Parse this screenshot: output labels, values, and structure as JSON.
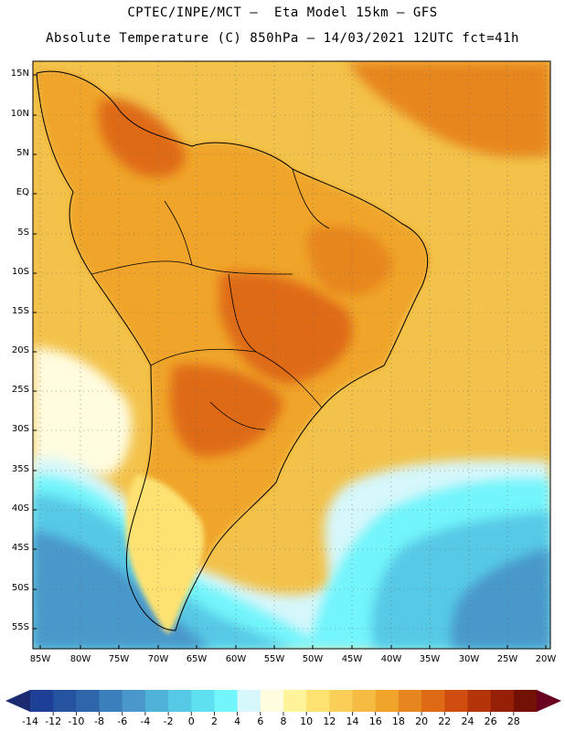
{
  "header": {
    "line1": "CPTEC/INPE/MCT –  Eta Model 15km – GFS",
    "line2": "Absolute Temperature (C) 850hPa – 14/03/2021 12UTC fct=41h"
  },
  "lat_labels": [
    "15N",
    "10N",
    "5N",
    "EQ",
    "5S",
    "10S",
    "15S",
    "20S",
    "25S",
    "30S",
    "35S",
    "40S",
    "45S",
    "50S",
    "55S"
  ],
  "lon_labels": [
    "85W",
    "80W",
    "75W",
    "70W",
    "65W",
    "60W",
    "55W",
    "50W",
    "45W",
    "40W",
    "35W",
    "30W",
    "25W",
    "20W"
  ],
  "legend": {
    "ticks": [
      "-14",
      "-12",
      "-10",
      "-8",
      "-6",
      "-4",
      "-2",
      "0",
      "2",
      "4",
      "6",
      "8",
      "10",
      "12",
      "14",
      "16",
      "18",
      "20",
      "22",
      "24",
      "26",
      "28"
    ],
    "colors": [
      "#1d3f95",
      "#26539f",
      "#2f66ab",
      "#3b7fbc",
      "#4a98cb",
      "#4fb3d9",
      "#56c9e6",
      "#5fe0f0",
      "#72f5fb",
      "#d6f7fb",
      "#fffce0",
      "#fff49a",
      "#fde272",
      "#f9cf58",
      "#f5bb42",
      "#f0a52a",
      "#e7861e",
      "#df6a15",
      "#cf4e0f",
      "#b6340a",
      "#962006",
      "#741105"
    ],
    "low_arrow_color": "#1a2a70",
    "high_arrow_color": "#6a0020"
  },
  "map_colors": {
    "sea_warm": "#f3c24a",
    "land_base": "#f0a52a",
    "land_hot": "#e7861e",
    "land_very_hot": "#df6a15",
    "mild": "#fde272",
    "cool": "#fffce0",
    "cold1": "#d6f7fb",
    "cold2": "#72f5fb",
    "cold3": "#56c9e6",
    "cold4": "#4a98cb",
    "cold5": "#3b7fbc",
    "cold6": "#2f66ab"
  }
}
